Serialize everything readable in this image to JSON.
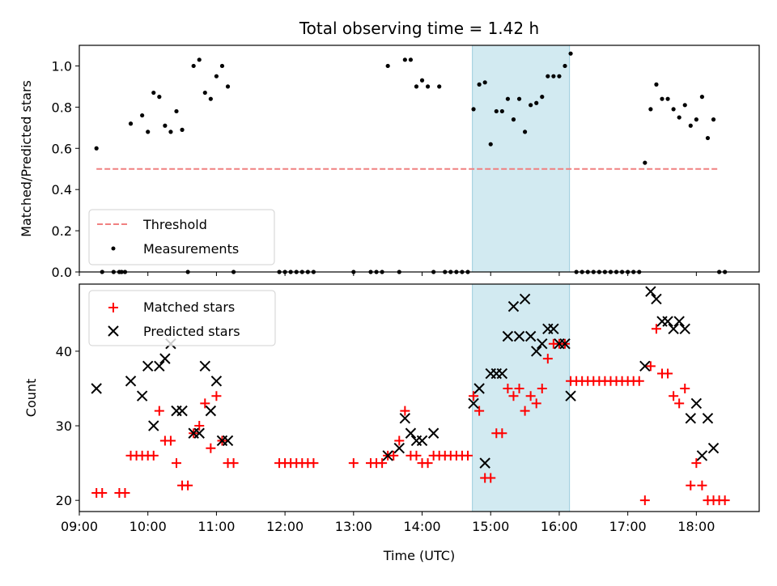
{
  "chart_data": [
    {
      "type": "scatter",
      "title": "Total observing time = 1.42 h",
      "xlabel": "",
      "ylabel": "Matched/Predicted stars",
      "xlim": [
        "09:00",
        "18:55"
      ],
      "ylim": [
        0,
        1.1
      ],
      "yticks": [
        "0.0",
        "0.2",
        "0.4",
        "0.6",
        "0.8",
        "1.0"
      ],
      "x_tick_labels_shown": false,
      "highlight_span": [
        "14:44",
        "16:09"
      ],
      "highlight_color": "#add8e6",
      "legend": {
        "placement": "lower-left",
        "entries": [
          "Threshold",
          "Measurements"
        ]
      },
      "threshold": {
        "name": "Threshold",
        "value": 0.5,
        "x_range": [
          "09:15",
          "18:20"
        ],
        "color": "#f08080",
        "style": "dashed"
      },
      "series": [
        {
          "name": "Measurements",
          "marker": "dot",
          "color": "#000000",
          "points": [
            [
              "09:15",
              0.6
            ],
            [
              "09:20",
              0.0
            ],
            [
              "09:30",
              0.0
            ],
            [
              "09:35",
              0.0
            ],
            [
              "09:37",
              0.0
            ],
            [
              "09:40",
              0.0
            ],
            [
              "09:45",
              0.72
            ],
            [
              "09:55",
              0.76
            ],
            [
              "10:00",
              0.68
            ],
            [
              "10:05",
              0.87
            ],
            [
              "10:10",
              0.85
            ],
            [
              "10:15",
              0.71
            ],
            [
              "10:20",
              0.68
            ],
            [
              "10:25",
              0.78
            ],
            [
              "10:30",
              0.69
            ],
            [
              "10:35",
              0.0
            ],
            [
              "10:40",
              1.0
            ],
            [
              "10:45",
              1.03
            ],
            [
              "10:50",
              0.87
            ],
            [
              "10:55",
              0.84
            ],
            [
              "11:00",
              0.95
            ],
            [
              "11:05",
              1.0
            ],
            [
              "11:10",
              0.9
            ],
            [
              "11:15",
              0.0
            ],
            [
              "11:55",
              0.0
            ],
            [
              "12:00",
              0.0
            ],
            [
              "12:05",
              0.0
            ],
            [
              "12:10",
              0.0
            ],
            [
              "12:15",
              0.0
            ],
            [
              "12:20",
              0.0
            ],
            [
              "12:25",
              0.0
            ],
            [
              "13:00",
              0.0
            ],
            [
              "13:15",
              0.0
            ],
            [
              "13:20",
              0.0
            ],
            [
              "13:25",
              0.0
            ],
            [
              "13:30",
              1.0
            ],
            [
              "13:40",
              0.0
            ],
            [
              "13:45",
              1.03
            ],
            [
              "13:50",
              1.03
            ],
            [
              "13:55",
              0.9
            ],
            [
              "14:00",
              0.93
            ],
            [
              "14:05",
              0.9
            ],
            [
              "14:10",
              0.0
            ],
            [
              "14:15",
              0.9
            ],
            [
              "14:20",
              0.0
            ],
            [
              "14:25",
              0.0
            ],
            [
              "14:30",
              0.0
            ],
            [
              "14:35",
              0.0
            ],
            [
              "14:40",
              0.0
            ],
            [
              "14:45",
              0.79
            ],
            [
              "14:50",
              0.91
            ],
            [
              "14:55",
              0.92
            ],
            [
              "15:00",
              0.62
            ],
            [
              "15:05",
              0.78
            ],
            [
              "15:10",
              0.78
            ],
            [
              "15:15",
              0.84
            ],
            [
              "15:20",
              0.74
            ],
            [
              "15:25",
              0.84
            ],
            [
              "15:30",
              0.68
            ],
            [
              "15:35",
              0.81
            ],
            [
              "15:40",
              0.82
            ],
            [
              "15:45",
              0.85
            ],
            [
              "15:50",
              0.95
            ],
            [
              "15:55",
              0.95
            ],
            [
              "16:00",
              0.95
            ],
            [
              "16:05",
              1.0
            ],
            [
              "16:10",
              1.06
            ],
            [
              "16:15",
              0.0
            ],
            [
              "16:20",
              0.0
            ],
            [
              "16:25",
              0.0
            ],
            [
              "16:30",
              0.0
            ],
            [
              "16:35",
              0.0
            ],
            [
              "16:40",
              0.0
            ],
            [
              "16:45",
              0.0
            ],
            [
              "16:50",
              0.0
            ],
            [
              "16:55",
              0.0
            ],
            [
              "17:00",
              0.0
            ],
            [
              "17:05",
              0.0
            ],
            [
              "17:10",
              0.0
            ],
            [
              "17:15",
              0.53
            ],
            [
              "17:20",
              0.79
            ],
            [
              "17:25",
              0.91
            ],
            [
              "17:30",
              0.84
            ],
            [
              "17:35",
              0.84
            ],
            [
              "17:40",
              0.79
            ],
            [
              "17:45",
              0.75
            ],
            [
              "17:50",
              0.81
            ],
            [
              "17:55",
              0.71
            ],
            [
              "18:00",
              0.74
            ],
            [
              "18:05",
              0.85
            ],
            [
              "18:10",
              0.65
            ],
            [
              "18:15",
              0.74
            ],
            [
              "18:20",
              0.0
            ],
            [
              "18:25",
              0.0
            ]
          ]
        }
      ]
    },
    {
      "type": "scatter",
      "title": "",
      "xlabel": "Time (UTC)",
      "ylabel": "Count",
      "xlim": [
        "09:00",
        "18:55"
      ],
      "ylim": [
        18.5,
        49
      ],
      "yticks": [
        "20",
        "30",
        "40"
      ],
      "xticks": [
        "09:00",
        "10:00",
        "11:00",
        "12:00",
        "13:00",
        "14:00",
        "15:00",
        "16:00",
        "17:00",
        "18:00"
      ],
      "highlight_span": [
        "14:44",
        "16:09"
      ],
      "highlight_color": "#add8e6",
      "legend": {
        "placement": "upper-left",
        "entries": [
          "Matched stars",
          "Predicted stars"
        ]
      },
      "series": [
        {
          "name": "Matched stars",
          "marker": "plus",
          "color": "#ff0000",
          "points": [
            [
              "09:15",
              21
            ],
            [
              "09:20",
              21
            ],
            [
              "09:35",
              21
            ],
            [
              "09:40",
              21
            ],
            [
              "09:45",
              26
            ],
            [
              "09:50",
              26
            ],
            [
              "09:55",
              26
            ],
            [
              "10:00",
              26
            ],
            [
              "10:05",
              26
            ],
            [
              "10:10",
              32
            ],
            [
              "10:15",
              28
            ],
            [
              "10:20",
              28
            ],
            [
              "10:25",
              25
            ],
            [
              "10:30",
              22
            ],
            [
              "10:35",
              22
            ],
            [
              "10:40",
              29
            ],
            [
              "10:45",
              30
            ],
            [
              "10:50",
              33
            ],
            [
              "10:55",
              27
            ],
            [
              "11:00",
              34
            ],
            [
              "11:05",
              28
            ],
            [
              "11:10",
              25
            ],
            [
              "11:15",
              25
            ],
            [
              "11:55",
              25
            ],
            [
              "12:00",
              25
            ],
            [
              "12:05",
              25
            ],
            [
              "12:10",
              25
            ],
            [
              "12:15",
              25
            ],
            [
              "12:20",
              25
            ],
            [
              "12:25",
              25
            ],
            [
              "13:00",
              25
            ],
            [
              "13:15",
              25
            ],
            [
              "13:20",
              25
            ],
            [
              "13:25",
              25
            ],
            [
              "13:30",
              26
            ],
            [
              "13:35",
              26
            ],
            [
              "13:40",
              28
            ],
            [
              "13:45",
              32
            ],
            [
              "13:50",
              26
            ],
            [
              "13:55",
              26
            ],
            [
              "14:00",
              25
            ],
            [
              "14:05",
              25
            ],
            [
              "14:10",
              26
            ],
            [
              "14:15",
              26
            ],
            [
              "14:20",
              26
            ],
            [
              "14:25",
              26
            ],
            [
              "14:30",
              26
            ],
            [
              "14:35",
              26
            ],
            [
              "14:40",
              26
            ],
            [
              "14:45",
              34
            ],
            [
              "14:50",
              32
            ],
            [
              "14:55",
              23
            ],
            [
              "15:00",
              23
            ],
            [
              "15:05",
              29
            ],
            [
              "15:10",
              29
            ],
            [
              "15:15",
              35
            ],
            [
              "15:20",
              34
            ],
            [
              "15:25",
              35
            ],
            [
              "15:30",
              32
            ],
            [
              "15:35",
              34
            ],
            [
              "15:40",
              33
            ],
            [
              "15:45",
              35
            ],
            [
              "15:50",
              39
            ],
            [
              "15:55",
              41
            ],
            [
              "16:00",
              41
            ],
            [
              "16:05",
              41
            ],
            [
              "16:10",
              36
            ],
            [
              "16:15",
              36
            ],
            [
              "16:20",
              36
            ],
            [
              "16:25",
              36
            ],
            [
              "16:30",
              36
            ],
            [
              "16:35",
              36
            ],
            [
              "16:40",
              36
            ],
            [
              "16:45",
              36
            ],
            [
              "16:50",
              36
            ],
            [
              "16:55",
              36
            ],
            [
              "17:00",
              36
            ],
            [
              "17:05",
              36
            ],
            [
              "17:10",
              36
            ],
            [
              "17:15",
              20
            ],
            [
              "17:20",
              38
            ],
            [
              "17:25",
              43
            ],
            [
              "17:30",
              37
            ],
            [
              "17:35",
              37
            ],
            [
              "17:40",
              34
            ],
            [
              "17:45",
              33
            ],
            [
              "17:50",
              35
            ],
            [
              "17:55",
              22
            ],
            [
              "18:00",
              25
            ],
            [
              "18:05",
              22
            ],
            [
              "18:10",
              20
            ],
            [
              "18:15",
              20
            ],
            [
              "18:20",
              20
            ],
            [
              "18:25",
              20
            ]
          ]
        },
        {
          "name": "Predicted stars",
          "marker": "x",
          "color": "#000000",
          "points": [
            [
              "09:15",
              35
            ],
            [
              "09:45",
              36
            ],
            [
              "09:55",
              34
            ],
            [
              "10:00",
              38
            ],
            [
              "10:05",
              30
            ],
            [
              "10:10",
              38
            ],
            [
              "10:15",
              39
            ],
            [
              "10:20",
              41
            ],
            [
              "10:25",
              32
            ],
            [
              "10:30",
              32
            ],
            [
              "10:40",
              29
            ],
            [
              "10:45",
              29
            ],
            [
              "10:50",
              38
            ],
            [
              "10:55",
              32
            ],
            [
              "11:00",
              36
            ],
            [
              "11:05",
              28
            ],
            [
              "11:10",
              28
            ],
            [
              "13:30",
              26
            ],
            [
              "13:40",
              27
            ],
            [
              "13:45",
              31
            ],
            [
              "13:50",
              29
            ],
            [
              "13:55",
              28
            ],
            [
              "14:00",
              28
            ],
            [
              "14:10",
              29
            ],
            [
              "14:45",
              33
            ],
            [
              "14:50",
              35
            ],
            [
              "14:55",
              25
            ],
            [
              "15:00",
              37
            ],
            [
              "15:05",
              37
            ],
            [
              "15:10",
              37
            ],
            [
              "15:15",
              42
            ],
            [
              "15:20",
              46
            ],
            [
              "15:25",
              42
            ],
            [
              "15:30",
              47
            ],
            [
              "15:35",
              42
            ],
            [
              "15:40",
              40
            ],
            [
              "15:45",
              41
            ],
            [
              "15:50",
              43
            ],
            [
              "15:55",
              43
            ],
            [
              "16:00",
              41
            ],
            [
              "16:05",
              41
            ],
            [
              "16:10",
              34
            ],
            [
              "17:15",
              38
            ],
            [
              "17:20",
              48
            ],
            [
              "17:25",
              47
            ],
            [
              "17:30",
              44
            ],
            [
              "17:35",
              44
            ],
            [
              "17:40",
              43
            ],
            [
              "17:45",
              44
            ],
            [
              "17:50",
              43
            ],
            [
              "17:55",
              31
            ],
            [
              "18:00",
              33
            ],
            [
              "18:05",
              26
            ],
            [
              "18:10",
              31
            ],
            [
              "18:15",
              27
            ]
          ]
        }
      ]
    }
  ]
}
